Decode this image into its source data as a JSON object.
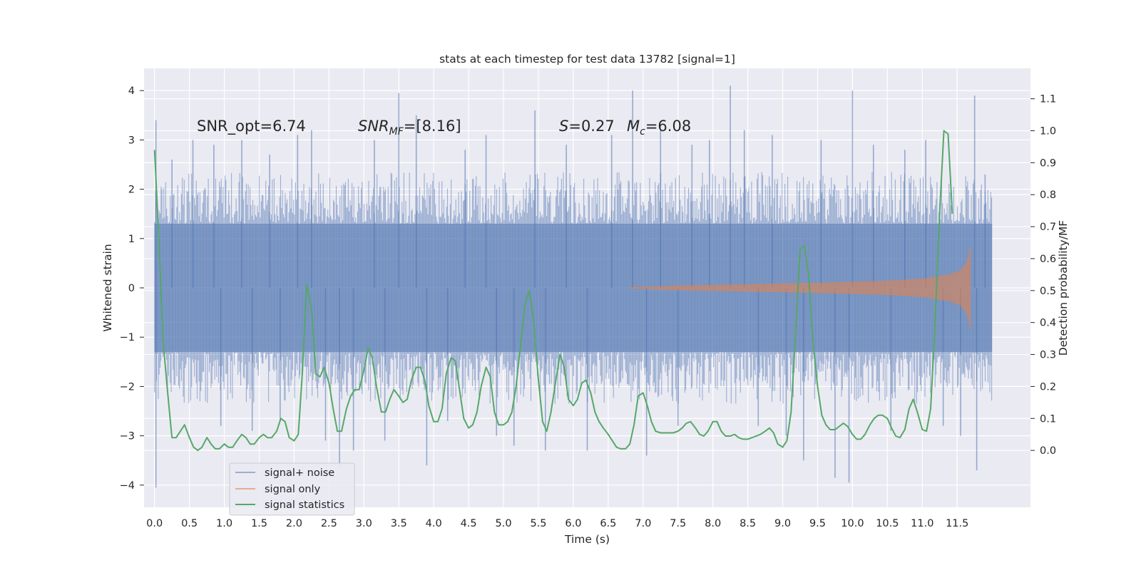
{
  "chart_data": {
    "type": "line",
    "title": "stats at each timestep for test data 13782 [signal=1]",
    "xlabel": "Time (s)",
    "ylabel": "Whitened strain",
    "y2label": "Detection probability/MF",
    "xlim": [
      -0.15,
      12.55
    ],
    "ylim": [
      -4.45,
      4.45
    ],
    "y2lim": [
      -0.178,
      1.195
    ],
    "x_ticks": [
      "0.0",
      "0.5",
      "1.0",
      "1.5",
      "2.0",
      "2.5",
      "3.0",
      "3.5",
      "4.0",
      "4.5",
      "5.0",
      "5.5",
      "6.0",
      "6.5",
      "7.0",
      "7.5",
      "8.0",
      "8.5",
      "9.0",
      "9.5",
      "10.0",
      "10.5",
      "11.0",
      "11.5"
    ],
    "y_ticks": [
      "4",
      "3",
      "2",
      "1",
      "0",
      "−1",
      "−2",
      "−3",
      "−4"
    ],
    "y2_ticks": [
      "1.1",
      "1.0",
      "0.9",
      "0.8",
      "0.7",
      "0.6",
      "0.5",
      "0.4",
      "0.3",
      "0.2",
      "0.1",
      "0.0"
    ],
    "grid": true,
    "legend_position": "lower-left",
    "colors": {
      "background": "#eaeaf2",
      "grid": "#ffffff",
      "noise": "#4c72b0",
      "signal": "#dd8452",
      "stat": "#55a868"
    },
    "annotations": {
      "snr_opt": "SNR_opt=6.74",
      "snr_mf_main": "SNR",
      "snr_mf_sub": "MF",
      "snr_mf_value": "=[8.16]",
      "s_var": "S",
      "s_value": "=0.27",
      "mc_var": "M",
      "mc_sub": "c",
      "mc_value": "=6.08"
    },
    "series": [
      {
        "name": "signal+ noise",
        "kind": "noise_band",
        "axis": "left",
        "x_range": [
          0.0,
          12.0
        ],
        "core_envelope": [
          -1.3,
          1.3
        ],
        "typical_envelope": [
          -2.1,
          2.1
        ],
        "peaks": [
          {
            "x": 0.02,
            "y": 3.4
          },
          {
            "x": 0.02,
            "y": -4.05
          },
          {
            "x": 0.25,
            "y": 2.6
          },
          {
            "x": 0.55,
            "y": 3.0
          },
          {
            "x": 0.85,
            "y": 2.9
          },
          {
            "x": 0.95,
            "y": -2.8
          },
          {
            "x": 1.25,
            "y": 3.0
          },
          {
            "x": 1.4,
            "y": -2.9
          },
          {
            "x": 1.65,
            "y": 2.7
          },
          {
            "x": 1.8,
            "y": -2.7
          },
          {
            "x": 2.05,
            "y": 3.1
          },
          {
            "x": 2.25,
            "y": 3.2
          },
          {
            "x": 2.45,
            "y": -3.1
          },
          {
            "x": 2.65,
            "y": -3.6
          },
          {
            "x": 2.85,
            "y": -3.3
          },
          {
            "x": 3.15,
            "y": 3.0
          },
          {
            "x": 3.3,
            "y": -3.1
          },
          {
            "x": 3.5,
            "y": 3.95
          },
          {
            "x": 3.75,
            "y": 3.5
          },
          {
            "x": 3.9,
            "y": -3.6
          },
          {
            "x": 4.2,
            "y": -2.7
          },
          {
            "x": 4.45,
            "y": 2.8
          },
          {
            "x": 4.75,
            "y": 3.1
          },
          {
            "x": 4.9,
            "y": -3.0
          },
          {
            "x": 5.15,
            "y": -3.2
          },
          {
            "x": 5.45,
            "y": 3.6
          },
          {
            "x": 5.6,
            "y": -3.3
          },
          {
            "x": 5.9,
            "y": 2.9
          },
          {
            "x": 6.2,
            "y": -3.3
          },
          {
            "x": 6.55,
            "y": 3.1
          },
          {
            "x": 6.85,
            "y": 4.0
          },
          {
            "x": 7.05,
            "y": -3.4
          },
          {
            "x": 7.25,
            "y": 3.2
          },
          {
            "x": 7.5,
            "y": -2.8
          },
          {
            "x": 7.7,
            "y": 2.9
          },
          {
            "x": 7.95,
            "y": 3.0
          },
          {
            "x": 8.25,
            "y": 4.1
          },
          {
            "x": 8.45,
            "y": 3.2
          },
          {
            "x": 8.65,
            "y": -2.8
          },
          {
            "x": 8.85,
            "y": 3.1
          },
          {
            "x": 9.05,
            "y": -3.0
          },
          {
            "x": 9.3,
            "y": -3.5
          },
          {
            "x": 9.55,
            "y": 3.0
          },
          {
            "x": 9.75,
            "y": -3.85
          },
          {
            "x": 9.95,
            "y": -3.95
          },
          {
            "x": 10.0,
            "y": 4.0
          },
          {
            "x": 10.3,
            "y": 2.9
          },
          {
            "x": 10.55,
            "y": -2.9
          },
          {
            "x": 10.75,
            "y": 2.8
          },
          {
            "x": 11.05,
            "y": 3.0
          },
          {
            "x": 11.3,
            "y": -2.8
          },
          {
            "x": 11.55,
            "y": -3.0
          },
          {
            "x": 11.75,
            "y": 3.9
          },
          {
            "x": 11.78,
            "y": -3.7
          },
          {
            "x": 11.9,
            "y": 2.3
          }
        ]
      },
      {
        "name": "signal only",
        "kind": "chirp",
        "axis": "left",
        "x_range": [
          6.8,
          11.7
        ],
        "envelope": [
          {
            "x": 6.8,
            "y": 0.01
          },
          {
            "x": 7.5,
            "y": 0.04
          },
          {
            "x": 8.5,
            "y": 0.07
          },
          {
            "x": 9.5,
            "y": 0.1
          },
          {
            "x": 10.5,
            "y": 0.14
          },
          {
            "x": 11.0,
            "y": 0.18
          },
          {
            "x": 11.4,
            "y": 0.27
          },
          {
            "x": 11.55,
            "y": 0.35
          },
          {
            "x": 11.62,
            "y": 0.48
          },
          {
            "x": 11.66,
            "y": 0.62
          },
          {
            "x": 11.69,
            "y": 0.85
          }
        ]
      },
      {
        "name": "signal statistics",
        "kind": "line",
        "axis": "right",
        "points": [
          {
            "x": 0.0,
            "y": 0.94
          },
          {
            "x": 0.06,
            "y": 0.67
          },
          {
            "x": 0.12,
            "y": 0.35
          },
          {
            "x": 0.18,
            "y": 0.2
          },
          {
            "x": 0.25,
            "y": 0.04
          },
          {
            "x": 0.31,
            "y": 0.04
          },
          {
            "x": 0.37,
            "y": 0.06
          },
          {
            "x": 0.43,
            "y": 0.08
          },
          {
            "x": 0.5,
            "y": 0.04
          },
          {
            "x": 0.56,
            "y": 0.01
          },
          {
            "x": 0.62,
            "y": 0.0
          },
          {
            "x": 0.68,
            "y": 0.01
          },
          {
            "x": 0.75,
            "y": 0.04
          },
          {
            "x": 0.81,
            "y": 0.02
          },
          {
            "x": 0.87,
            "y": 0.005
          },
          {
            "x": 0.93,
            "y": 0.005
          },
          {
            "x": 1.0,
            "y": 0.02
          },
          {
            "x": 1.06,
            "y": 0.01
          },
          {
            "x": 1.12,
            "y": 0.01
          },
          {
            "x": 1.18,
            "y": 0.03
          },
          {
            "x": 1.25,
            "y": 0.05
          },
          {
            "x": 1.31,
            "y": 0.04
          },
          {
            "x": 1.37,
            "y": 0.02
          },
          {
            "x": 1.43,
            "y": 0.02
          },
          {
            "x": 1.5,
            "y": 0.04
          },
          {
            "x": 1.56,
            "y": 0.05
          },
          {
            "x": 1.62,
            "y": 0.04
          },
          {
            "x": 1.68,
            "y": 0.04
          },
          {
            "x": 1.75,
            "y": 0.06
          },
          {
            "x": 1.81,
            "y": 0.1
          },
          {
            "x": 1.87,
            "y": 0.09
          },
          {
            "x": 1.93,
            "y": 0.04
          },
          {
            "x": 2.0,
            "y": 0.03
          },
          {
            "x": 2.06,
            "y": 0.05
          },
          {
            "x": 2.12,
            "y": 0.25
          },
          {
            "x": 2.18,
            "y": 0.52
          },
          {
            "x": 2.25,
            "y": 0.44
          },
          {
            "x": 2.31,
            "y": 0.24
          },
          {
            "x": 2.37,
            "y": 0.23
          },
          {
            "x": 2.43,
            "y": 0.26
          },
          {
            "x": 2.5,
            "y": 0.21
          },
          {
            "x": 2.56,
            "y": 0.13
          },
          {
            "x": 2.62,
            "y": 0.06
          },
          {
            "x": 2.68,
            "y": 0.06
          },
          {
            "x": 2.75,
            "y": 0.13
          },
          {
            "x": 2.81,
            "y": 0.17
          },
          {
            "x": 2.87,
            "y": 0.19
          },
          {
            "x": 2.93,
            "y": 0.19
          },
          {
            "x": 3.0,
            "y": 0.25
          },
          {
            "x": 3.06,
            "y": 0.32
          },
          {
            "x": 3.12,
            "y": 0.29
          },
          {
            "x": 3.18,
            "y": 0.2
          },
          {
            "x": 3.25,
            "y": 0.12
          },
          {
            "x": 3.31,
            "y": 0.12
          },
          {
            "x": 3.37,
            "y": 0.16
          },
          {
            "x": 3.43,
            "y": 0.19
          },
          {
            "x": 3.5,
            "y": 0.17
          },
          {
            "x": 3.56,
            "y": 0.15
          },
          {
            "x": 3.62,
            "y": 0.16
          },
          {
            "x": 3.68,
            "y": 0.22
          },
          {
            "x": 3.75,
            "y": 0.26
          },
          {
            "x": 3.81,
            "y": 0.26
          },
          {
            "x": 3.87,
            "y": 0.22
          },
          {
            "x": 3.93,
            "y": 0.14
          },
          {
            "x": 4.0,
            "y": 0.09
          },
          {
            "x": 4.06,
            "y": 0.09
          },
          {
            "x": 4.12,
            "y": 0.13
          },
          {
            "x": 4.18,
            "y": 0.24
          },
          {
            "x": 4.25,
            "y": 0.29
          },
          {
            "x": 4.31,
            "y": 0.28
          },
          {
            "x": 4.37,
            "y": 0.19
          },
          {
            "x": 4.43,
            "y": 0.1
          },
          {
            "x": 4.5,
            "y": 0.07
          },
          {
            "x": 4.56,
            "y": 0.08
          },
          {
            "x": 4.62,
            "y": 0.12
          },
          {
            "x": 4.68,
            "y": 0.2
          },
          {
            "x": 4.75,
            "y": 0.26
          },
          {
            "x": 4.81,
            "y": 0.23
          },
          {
            "x": 4.87,
            "y": 0.12
          },
          {
            "x": 4.93,
            "y": 0.08
          },
          {
            "x": 5.0,
            "y": 0.08
          },
          {
            "x": 5.06,
            "y": 0.09
          },
          {
            "x": 5.12,
            "y": 0.12
          },
          {
            "x": 5.18,
            "y": 0.2
          },
          {
            "x": 5.25,
            "y": 0.34
          },
          {
            "x": 5.31,
            "y": 0.46
          },
          {
            "x": 5.37,
            "y": 0.5
          },
          {
            "x": 5.43,
            "y": 0.41
          },
          {
            "x": 5.5,
            "y": 0.22
          },
          {
            "x": 5.56,
            "y": 0.09
          },
          {
            "x": 5.62,
            "y": 0.06
          },
          {
            "x": 5.68,
            "y": 0.12
          },
          {
            "x": 5.75,
            "y": 0.22
          },
          {
            "x": 5.81,
            "y": 0.3
          },
          {
            "x": 5.87,
            "y": 0.26
          },
          {
            "x": 5.93,
            "y": 0.16
          },
          {
            "x": 6.0,
            "y": 0.14
          },
          {
            "x": 6.06,
            "y": 0.16
          },
          {
            "x": 6.12,
            "y": 0.21
          },
          {
            "x": 6.18,
            "y": 0.22
          },
          {
            "x": 6.25,
            "y": 0.18
          },
          {
            "x": 6.31,
            "y": 0.12
          },
          {
            "x": 6.37,
            "y": 0.09
          },
          {
            "x": 6.43,
            "y": 0.07
          },
          {
            "x": 6.5,
            "y": 0.05
          },
          {
            "x": 6.56,
            "y": 0.03
          },
          {
            "x": 6.62,
            "y": 0.01
          },
          {
            "x": 6.68,
            "y": 0.005
          },
          {
            "x": 6.75,
            "y": 0.005
          },
          {
            "x": 6.81,
            "y": 0.02
          },
          {
            "x": 6.87,
            "y": 0.08
          },
          {
            "x": 6.93,
            "y": 0.17
          },
          {
            "x": 7.0,
            "y": 0.18
          },
          {
            "x": 7.06,
            "y": 0.14
          },
          {
            "x": 7.12,
            "y": 0.09
          },
          {
            "x": 7.18,
            "y": 0.06
          },
          {
            "x": 7.25,
            "y": 0.055
          },
          {
            "x": 7.31,
            "y": 0.055
          },
          {
            "x": 7.37,
            "y": 0.055
          },
          {
            "x": 7.43,
            "y": 0.055
          },
          {
            "x": 7.5,
            "y": 0.06
          },
          {
            "x": 7.56,
            "y": 0.07
          },
          {
            "x": 7.62,
            "y": 0.085
          },
          {
            "x": 7.68,
            "y": 0.09
          },
          {
            "x": 7.75,
            "y": 0.07
          },
          {
            "x": 7.81,
            "y": 0.05
          },
          {
            "x": 7.87,
            "y": 0.045
          },
          {
            "x": 7.93,
            "y": 0.06
          },
          {
            "x": 8.0,
            "y": 0.09
          },
          {
            "x": 8.06,
            "y": 0.09
          },
          {
            "x": 8.12,
            "y": 0.06
          },
          {
            "x": 8.18,
            "y": 0.045
          },
          {
            "x": 8.25,
            "y": 0.045
          },
          {
            "x": 8.31,
            "y": 0.05
          },
          {
            "x": 8.37,
            "y": 0.04
          },
          {
            "x": 8.43,
            "y": 0.035
          },
          {
            "x": 8.5,
            "y": 0.035
          },
          {
            "x": 8.56,
            "y": 0.04
          },
          {
            "x": 8.62,
            "y": 0.045
          },
          {
            "x": 8.68,
            "y": 0.05
          },
          {
            "x": 8.75,
            "y": 0.06
          },
          {
            "x": 8.81,
            "y": 0.07
          },
          {
            "x": 8.87,
            "y": 0.055
          },
          {
            "x": 8.93,
            "y": 0.02
          },
          {
            "x": 9.0,
            "y": 0.01
          },
          {
            "x": 9.06,
            "y": 0.03
          },
          {
            "x": 9.12,
            "y": 0.12
          },
          {
            "x": 9.18,
            "y": 0.35
          },
          {
            "x": 9.25,
            "y": 0.63
          },
          {
            "x": 9.31,
            "y": 0.64
          },
          {
            "x": 9.37,
            "y": 0.55
          },
          {
            "x": 9.43,
            "y": 0.35
          },
          {
            "x": 9.5,
            "y": 0.2
          },
          {
            "x": 9.56,
            "y": 0.11
          },
          {
            "x": 9.62,
            "y": 0.08
          },
          {
            "x": 9.68,
            "y": 0.065
          },
          {
            "x": 9.75,
            "y": 0.065
          },
          {
            "x": 9.81,
            "y": 0.075
          },
          {
            "x": 9.87,
            "y": 0.085
          },
          {
            "x": 9.93,
            "y": 0.075
          },
          {
            "x": 10.0,
            "y": 0.05
          },
          {
            "x": 10.06,
            "y": 0.035
          },
          {
            "x": 10.12,
            "y": 0.035
          },
          {
            "x": 10.18,
            "y": 0.05
          },
          {
            "x": 10.25,
            "y": 0.08
          },
          {
            "x": 10.31,
            "y": 0.1
          },
          {
            "x": 10.37,
            "y": 0.11
          },
          {
            "x": 10.43,
            "y": 0.11
          },
          {
            "x": 10.5,
            "y": 0.1
          },
          {
            "x": 10.56,
            "y": 0.07
          },
          {
            "x": 10.62,
            "y": 0.045
          },
          {
            "x": 10.68,
            "y": 0.04
          },
          {
            "x": 10.75,
            "y": 0.065
          },
          {
            "x": 10.81,
            "y": 0.13
          },
          {
            "x": 10.87,
            "y": 0.16
          },
          {
            "x": 10.93,
            "y": 0.12
          },
          {
            "x": 11.0,
            "y": 0.065
          },
          {
            "x": 11.06,
            "y": 0.06
          },
          {
            "x": 11.12,
            "y": 0.13
          },
          {
            "x": 11.18,
            "y": 0.38
          },
          {
            "x": 11.25,
            "y": 0.75
          },
          {
            "x": 11.31,
            "y": 1.0
          },
          {
            "x": 11.37,
            "y": 0.99
          },
          {
            "x": 11.43,
            "y": 0.74
          }
        ]
      }
    ]
  }
}
